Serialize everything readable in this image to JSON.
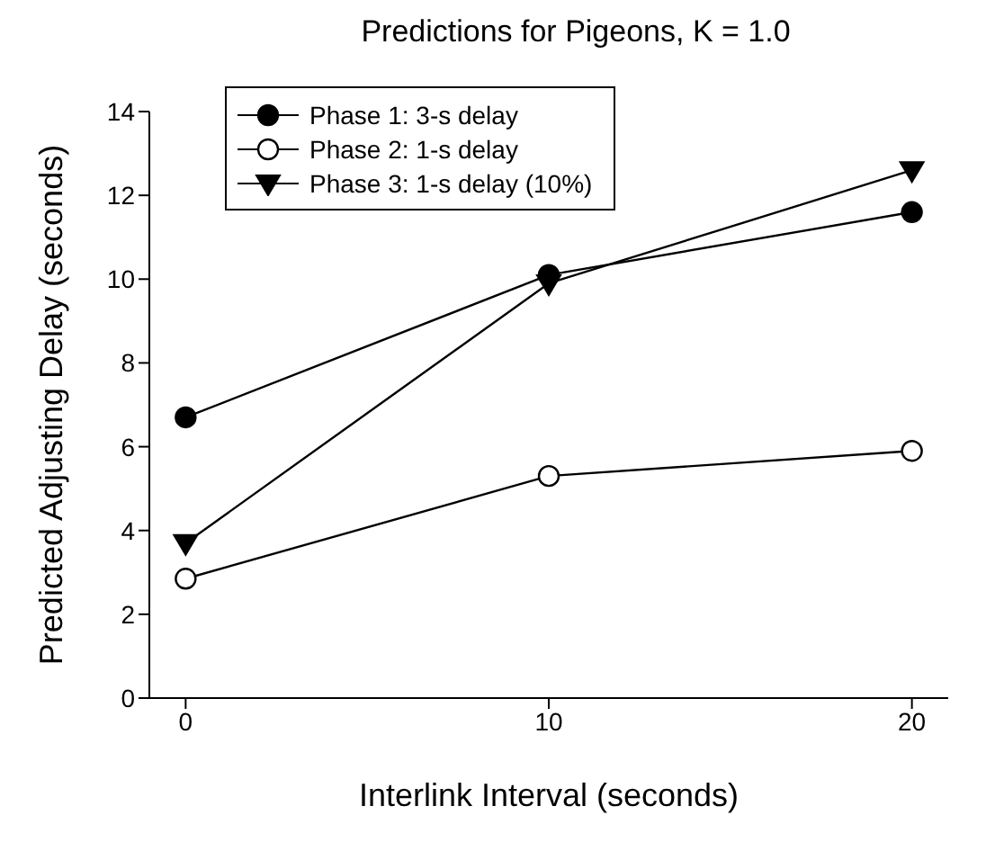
{
  "chart_data": {
    "type": "line",
    "title": "Predictions for Pigeons, K = 1.0",
    "xlabel": "Interlink Interval (seconds)",
    "ylabel": "Predicted Adjusting Delay (seconds)",
    "x": [
      0,
      10,
      20
    ],
    "series": [
      {
        "name": "Phase 1: 3-s delay",
        "color": "#000000",
        "marker": "circle",
        "values": [
          6.7,
          10.1,
          11.6
        ]
      },
      {
        "name": "Phase 2: 1-s delay",
        "color": "#000000",
        "marker": "circle",
        "colors": [
          "#ffffff",
          "#ffffff",
          "#ffffff"
        ],
        "values": [
          2.85,
          5.3,
          5.9
        ]
      },
      {
        "name": "Phase 3: 1-s delay (10%)",
        "color": "#000000",
        "marker": "triangle",
        "values": [
          3.7,
          9.9,
          12.6
        ]
      }
    ],
    "xlim": [
      -1,
      21
    ],
    "xticks": [
      0,
      10,
      20
    ],
    "ylim": [
      0,
      14
    ],
    "yticks": [
      0,
      2,
      4,
      6,
      8,
      10,
      12,
      14
    ],
    "grid": false,
    "legend": "top left"
  }
}
